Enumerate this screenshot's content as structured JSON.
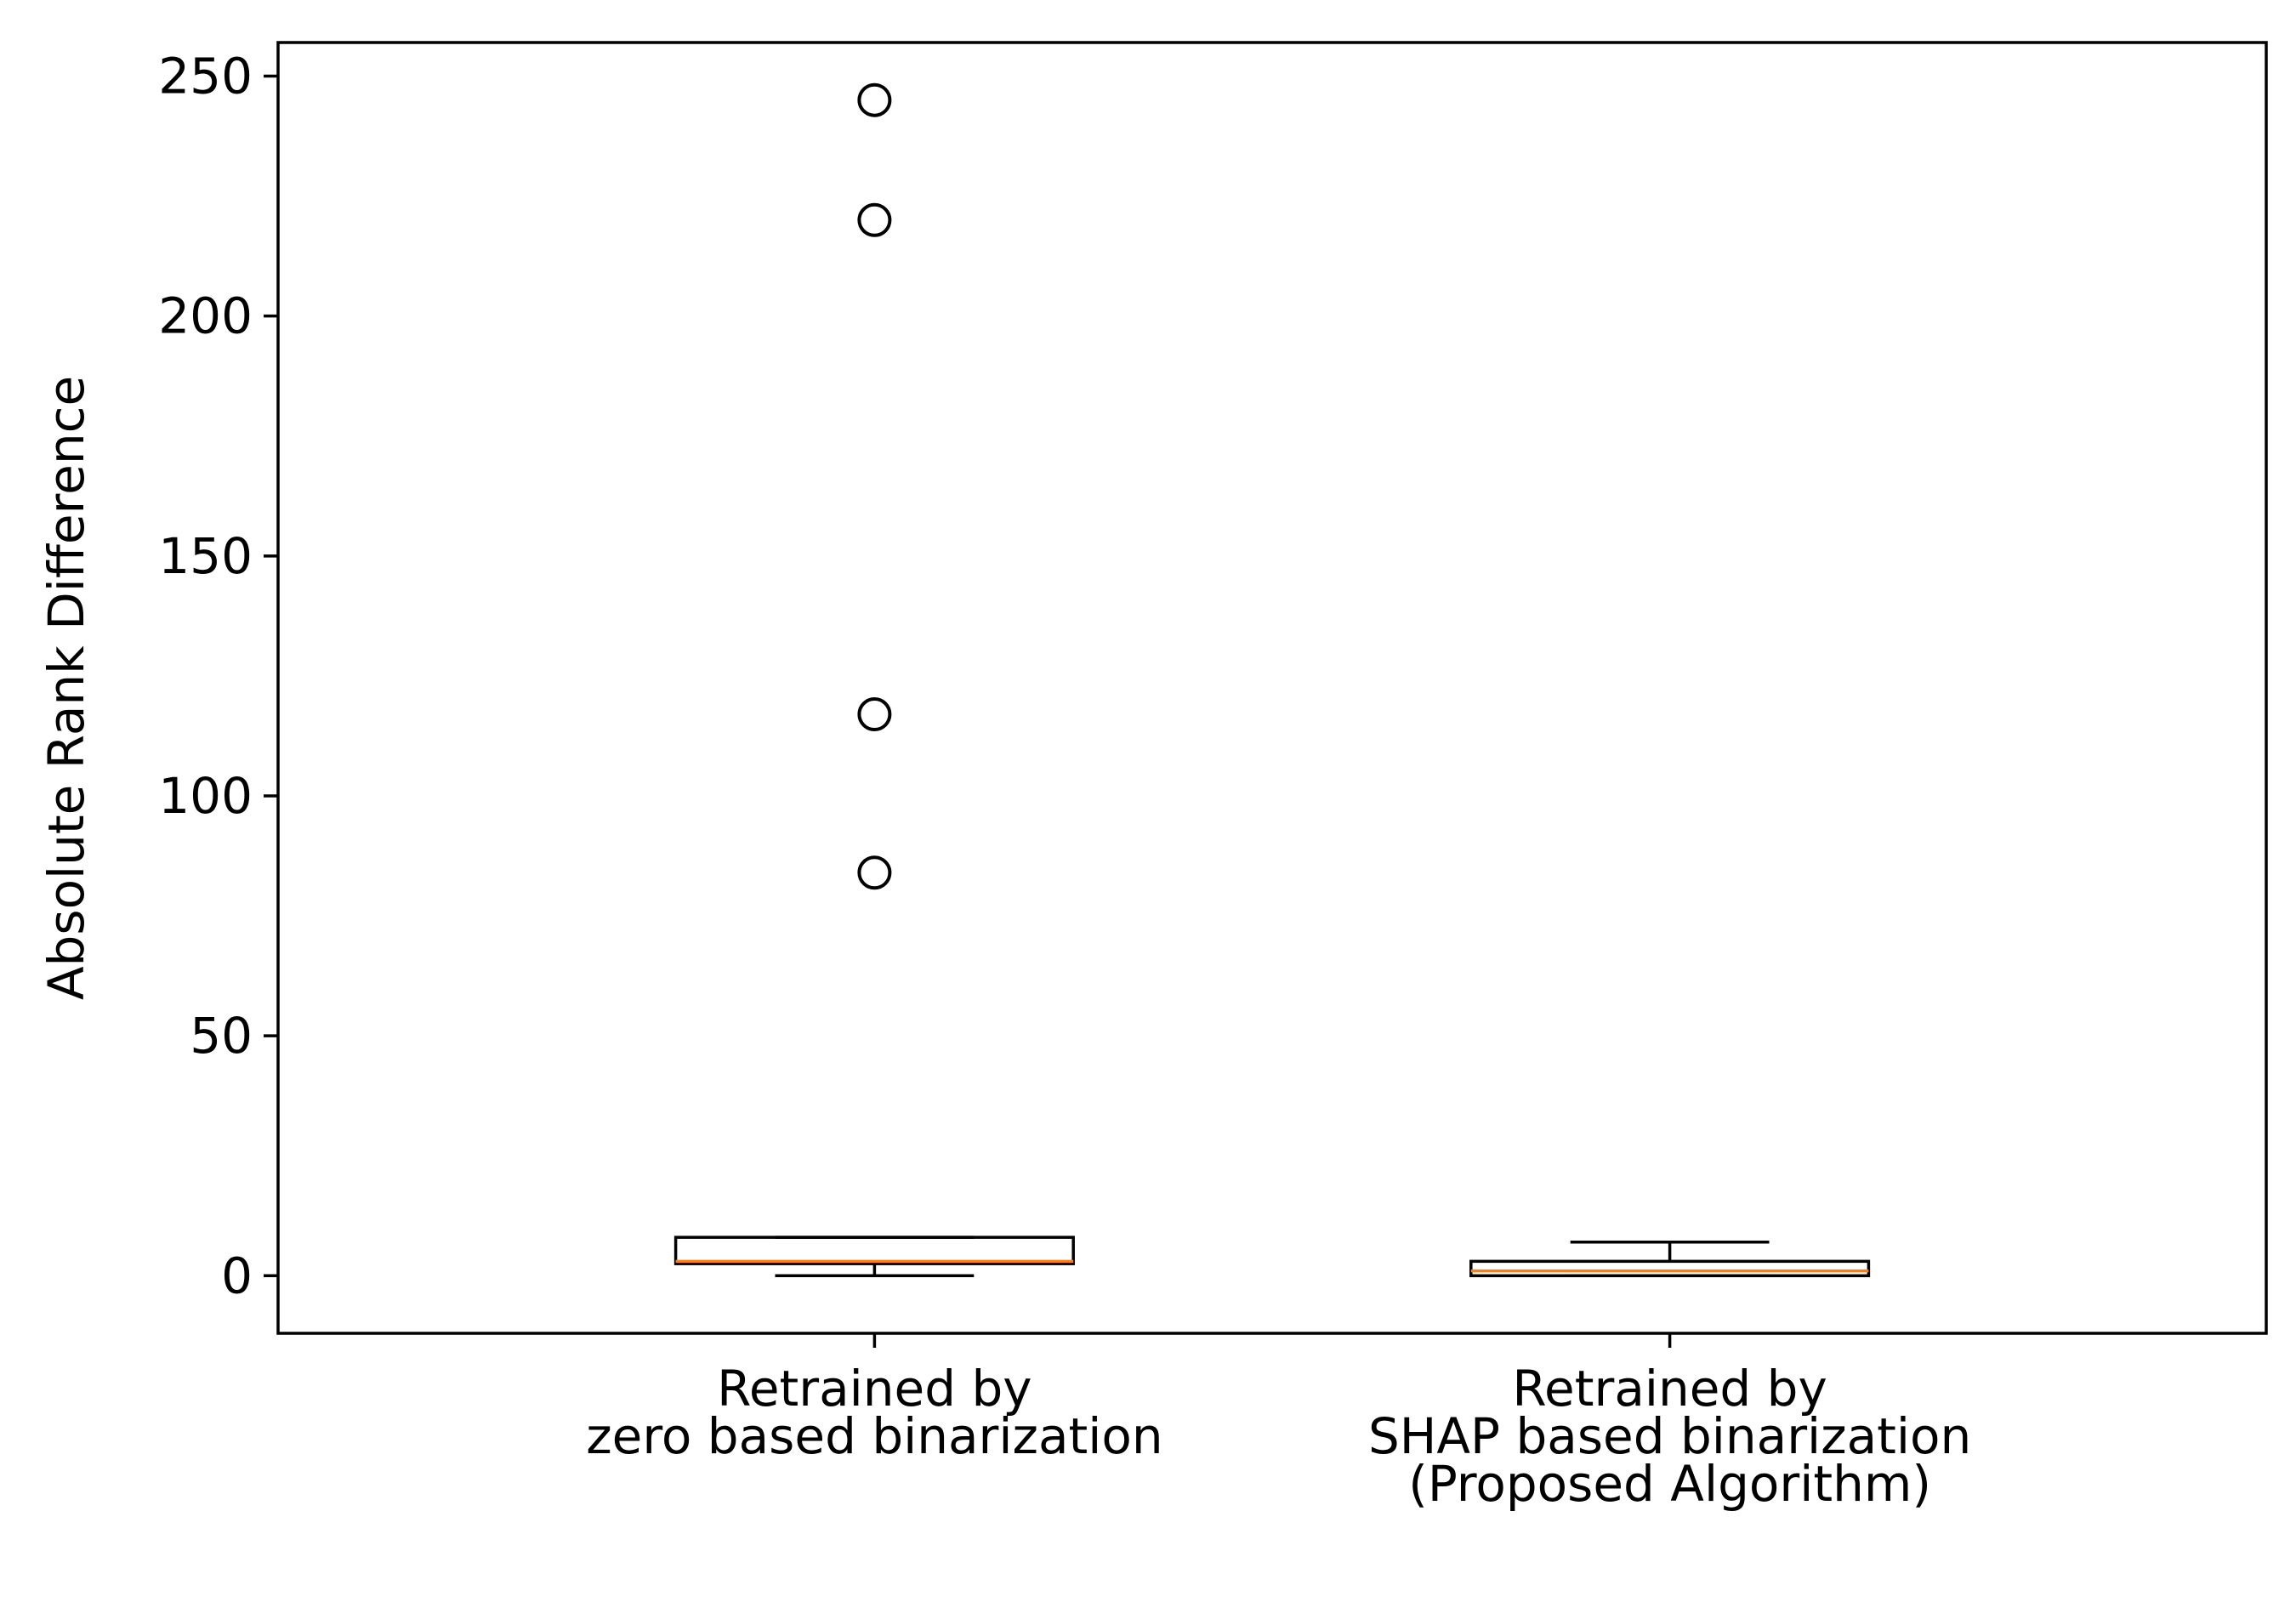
{
  "chart_data": {
    "type": "box",
    "title": "",
    "xlabel": "",
    "ylabel": "Absolute Rank Difference",
    "ylim": [
      -12,
      257
    ],
    "yticks": [
      0,
      50,
      100,
      150,
      200,
      250
    ],
    "grid": false,
    "categories": [
      [
        "Retrained by",
        "zero based binarization"
      ],
      [
        "Retrained by",
        "SHAP based binarization",
        "(Proposed Algorithm)"
      ]
    ],
    "boxes": [
      {
        "whisker_low": 0,
        "q1": 2.5,
        "median": 3,
        "q3": 8,
        "whisker_high": 8,
        "outliers": [
          84,
          117,
          220,
          245
        ]
      },
      {
        "whisker_low": 0,
        "q1": 0,
        "median": 1,
        "q3": 3,
        "whisker_high": 7,
        "outliers": []
      }
    ],
    "colors": {
      "box": "#000000",
      "median": "#ff7f0e",
      "flier": "#000000"
    }
  }
}
